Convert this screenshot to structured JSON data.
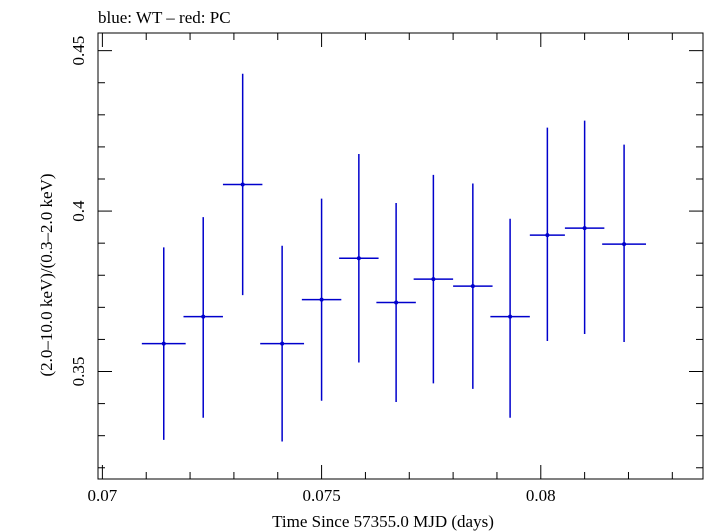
{
  "chart_data": {
    "type": "scatter",
    "title": "blue: WT – red: PC",
    "xlabel": "Time Since 57355.0 MJD (days)",
    "ylabel": "(2.0–10.0 keV)/(0.3–2.0 keV)",
    "xlim": [
      0.0699,
      0.0837
    ],
    "ylim": [
      0.3165,
      0.4555
    ],
    "x_ticks": [
      0.07,
      0.075,
      0.08
    ],
    "x_tick_labels": [
      "0.07",
      "0.075",
      "0.08"
    ],
    "y_ticks": [
      0.35,
      0.4,
      0.45
    ],
    "y_tick_labels": [
      "0.35",
      "0.4",
      "0.45"
    ],
    "grid": false,
    "series": [
      {
        "color": "#0000cc",
        "points": [
          {
            "x": 0.0714,
            "y": 0.3587,
            "xerr": 0.0005,
            "yerr_lo": 0.03,
            "yerr_hi": 0.03
          },
          {
            "x": 0.0723,
            "y": 0.3671,
            "xerr": 0.00045,
            "yerr_lo": 0.0315,
            "yerr_hi": 0.031
          },
          {
            "x": 0.0732,
            "y": 0.4083,
            "xerr": 0.00045,
            "yerr_lo": 0.0345,
            "yerr_hi": 0.0345
          },
          {
            "x": 0.0741,
            "y": 0.3587,
            "xerr": 0.0005,
            "yerr_lo": 0.0305,
            "yerr_hi": 0.0305
          },
          {
            "x": 0.075,
            "y": 0.3724,
            "xerr": 0.00045,
            "yerr_lo": 0.0315,
            "yerr_hi": 0.0315
          },
          {
            "x": 0.07585,
            "y": 0.3853,
            "xerr": 0.00045,
            "yerr_lo": 0.0325,
            "yerr_hi": 0.0325
          },
          {
            "x": 0.0767,
            "y": 0.3715,
            "xerr": 0.00045,
            "yerr_lo": 0.031,
            "yerr_hi": 0.031
          },
          {
            "x": 0.07755,
            "y": 0.3788,
            "xerr": 0.00045,
            "yerr_lo": 0.0325,
            "yerr_hi": 0.0325
          },
          {
            "x": 0.07845,
            "y": 0.3766,
            "xerr": 0.00045,
            "yerr_lo": 0.032,
            "yerr_hi": 0.032
          },
          {
            "x": 0.0793,
            "y": 0.3671,
            "xerr": 0.00045,
            "yerr_lo": 0.0315,
            "yerr_hi": 0.0305
          },
          {
            "x": 0.08015,
            "y": 0.3925,
            "xerr": 0.0004,
            "yerr_lo": 0.033,
            "yerr_hi": 0.0335
          },
          {
            "x": 0.081,
            "y": 0.3947,
            "xerr": 0.00045,
            "yerr_lo": 0.033,
            "yerr_hi": 0.0335
          },
          {
            "x": 0.0819,
            "y": 0.3897,
            "xerr": 0.0005,
            "yerr_lo": 0.0305,
            "yerr_hi": 0.031
          }
        ]
      }
    ]
  }
}
